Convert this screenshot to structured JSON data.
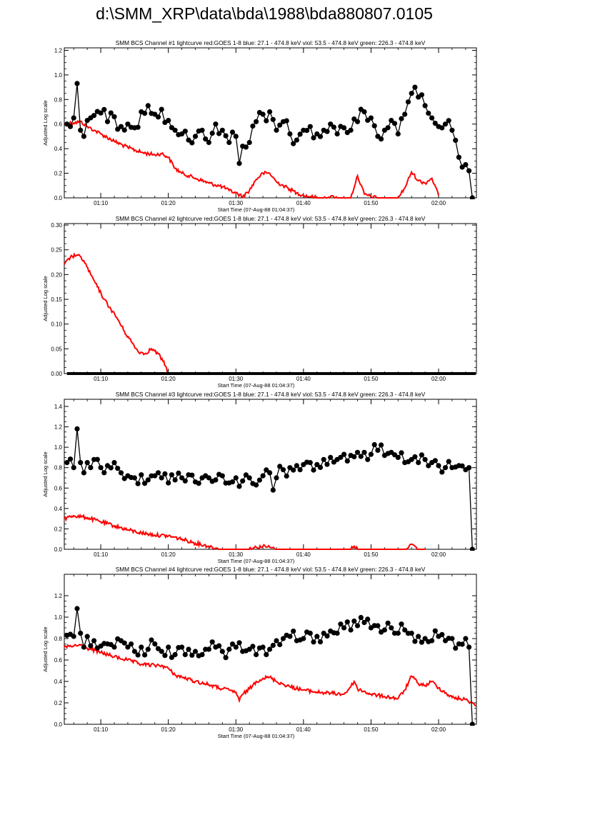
{
  "page": {
    "title": "d:\\SMM_XRP\\data\\bda\\1988\\bda880807.0105"
  },
  "colors": {
    "goes": "#ff0000",
    "bcs": "#000000",
    "axes": "#000000"
  },
  "chart_data": [
    {
      "type": "line",
      "title": "SMM BCS Channel #1 lightcurve  red:GOES 1-8  blue: 27.1 - 474.8 keV  viol: 53.5 - 474.8 keV  green: 226.3 - 474.8 keV",
      "xlabel": "Start Time (07-Aug-88 01:04:37)",
      "ylabel": "Adjusted Log scale",
      "x_unit": "minutes after 01:00",
      "xlim": [
        4.6,
        65.6
      ],
      "ylim": [
        0,
        1.22
      ],
      "yticks": [
        "0.0",
        "0.2",
        "0.4",
        "0.6",
        "0.8",
        "1.0",
        "1.2"
      ],
      "ytick_values": [
        0,
        0.2,
        0.4,
        0.6,
        0.8,
        1.0,
        1.2
      ],
      "xtick_labels": [
        "01:10",
        "01:20",
        "01:30",
        "01:40",
        "01:50",
        "02:00"
      ],
      "xtick_values": [
        10,
        20,
        30,
        40,
        50,
        60
      ],
      "series": [
        {
          "style": "goes",
          "color": "#ff0000",
          "x": [
            4.6,
            6,
            7,
            8,
            9,
            10,
            12,
            14,
            16,
            18,
            19,
            20,
            21,
            22,
            24,
            26,
            28,
            29,
            30,
            31,
            32,
            33,
            34,
            35,
            36,
            37,
            38,
            39,
            40,
            41,
            42,
            43,
            44,
            45,
            46,
            47,
            48,
            49,
            50,
            51,
            52,
            53,
            54,
            55,
            56,
            57,
            58,
            59,
            60
          ],
          "y": [
            0.6,
            0.61,
            0.62,
            0.58,
            0.55,
            0.52,
            0.46,
            0.41,
            0.37,
            0.35,
            0.36,
            0.33,
            0.24,
            0.2,
            0.16,
            0.12,
            0.09,
            0.06,
            0.04,
            0.01,
            0.06,
            0.15,
            0.2,
            0.2,
            0.13,
            0.1,
            0.07,
            0.04,
            0.02,
            0.01,
            0.0,
            0.0,
            0.01,
            0.0,
            0.0,
            0.0,
            0.18,
            0.03,
            0.01,
            0.0,
            0.0,
            0.0,
            0.0,
            0.08,
            0.21,
            0.14,
            0.12,
            0.16,
            0.02
          ]
        },
        {
          "style": "bcs",
          "color": "#000000",
          "x": [
            5,
            6,
            6.5,
            7,
            7.5,
            8,
            9,
            10,
            11,
            12,
            13,
            14,
            15,
            16,
            17,
            18,
            19,
            20,
            21,
            22,
            23,
            24,
            25,
            26,
            27,
            28,
            29,
            30,
            30.5,
            31,
            32,
            33,
            34,
            35,
            36,
            37,
            38,
            39,
            40,
            41,
            42,
            43,
            44,
            45,
            46,
            47,
            48,
            49,
            50,
            51,
            52,
            53,
            54,
            55,
            55.5,
            56,
            56.5,
            57,
            58,
            59,
            60,
            61,
            62,
            63,
            63.5,
            64,
            64.5,
            65
          ],
          "y": [
            0.6,
            0.65,
            0.93,
            0.55,
            0.5,
            0.63,
            0.67,
            0.69,
            0.62,
            0.66,
            0.58,
            0.6,
            0.57,
            0.7,
            0.75,
            0.68,
            0.72,
            0.63,
            0.55,
            0.52,
            0.47,
            0.5,
            0.55,
            0.45,
            0.6,
            0.55,
            0.45,
            0.5,
            0.28,
            0.42,
            0.45,
            0.62,
            0.68,
            0.7,
            0.55,
            0.62,
            0.52,
            0.47,
            0.55,
            0.58,
            0.52,
            0.55,
            0.6,
            0.52,
            0.57,
            0.55,
            0.62,
            0.7,
            0.65,
            0.5,
            0.55,
            0.63,
            0.52,
            0.68,
            0.78,
            0.85,
            0.9,
            0.82,
            0.75,
            0.65,
            0.58,
            0.6,
            0.55,
            0.33,
            0.25,
            0.27,
            0.22,
            0.0
          ]
        }
      ]
    },
    {
      "type": "line",
      "title": "SMM BCS Channel #2 lightcurve  red:GOES 1-8  blue: 27.1 - 474.8 keV  viol: 53.5 - 474.8 keV  green: 226.3 - 474.8 keV",
      "xlabel": "Start Time (07-Aug-88 01:04:37)",
      "ylabel": "Adjusted Log scale",
      "x_unit": "minutes after 01:00",
      "xlim": [
        4.6,
        65.6
      ],
      "ylim": [
        0,
        0.303
      ],
      "yticks": [
        "0.00",
        "0.05",
        "0.10",
        "0.15",
        "0.20",
        "0.25",
        "0.30"
      ],
      "ytick_values": [
        0,
        0.05,
        0.1,
        0.15,
        0.2,
        0.25,
        0.3
      ],
      "xtick_labels": [
        "01:10",
        "01:20",
        "01:30",
        "01:40",
        "01:50",
        "02:00"
      ],
      "xtick_values": [
        10,
        20,
        30,
        40,
        50,
        60
      ],
      "series": [
        {
          "style": "goes",
          "color": "#ff0000",
          "x": [
            4.6,
            5.5,
            6.5,
            7.5,
            8.5,
            9.5,
            10.5,
            11.5,
            12.5,
            13.5,
            14.5,
            15.5,
            16.5,
            17.5,
            18.5,
            19.2,
            19.6,
            20
          ],
          "y": [
            0.22,
            0.235,
            0.24,
            0.228,
            0.2,
            0.175,
            0.15,
            0.13,
            0.11,
            0.085,
            0.065,
            0.045,
            0.04,
            0.05,
            0.04,
            0.025,
            0.015,
            0.0
          ]
        },
        {
          "style": "bcs-baseline",
          "color": "#000000",
          "x": [
            5,
            65.5
          ],
          "y": [
            0,
            0
          ]
        }
      ]
    },
    {
      "type": "line",
      "title": "SMM BCS Channel #3 lightcurve  red:GOES 1-8  blue: 27.1 - 474.8 keV  viol: 53.5 - 474.8 keV  green: 226.3 - 474.8 keV",
      "xlabel": "Start Time (07-Aug-88 01:04:37)",
      "ylabel": "Adjusted Log scale",
      "x_unit": "minutes after 01:00",
      "xlim": [
        4.6,
        65.6
      ],
      "ylim": [
        0,
        1.47
      ],
      "yticks": [
        "0.0",
        "0.2",
        "0.4",
        "0.6",
        "0.8",
        "1.0",
        "1.2",
        "1.4"
      ],
      "ytick_values": [
        0,
        0.2,
        0.4,
        0.6,
        0.8,
        1.0,
        1.2,
        1.4
      ],
      "xtick_labels": [
        "01:10",
        "01:20",
        "01:30",
        "01:40",
        "01:50",
        "02:00"
      ],
      "xtick_values": [
        10,
        20,
        30,
        40,
        50,
        60
      ],
      "series": [
        {
          "style": "goes",
          "color": "#ff0000",
          "x": [
            4.6,
            6,
            8,
            10,
            12,
            14,
            16,
            18,
            20,
            22,
            24,
            26,
            27,
            28,
            32,
            33,
            34,
            35,
            36,
            45,
            47,
            47.5,
            48,
            55,
            56,
            56.5,
            57,
            58
          ],
          "y": [
            0.3,
            0.33,
            0.31,
            0.27,
            0.23,
            0.19,
            0.16,
            0.14,
            0.13,
            0.1,
            0.06,
            0.03,
            0.01,
            0.0,
            0.0,
            0.02,
            0.03,
            0.02,
            0.0,
            0.0,
            0.0,
            0.03,
            0.0,
            0.0,
            0.05,
            0.03,
            0.0,
            0.0
          ]
        },
        {
          "style": "bcs",
          "color": "#000000",
          "x": [
            5,
            6,
            6.5,
            7,
            7.5,
            8,
            9,
            10,
            11,
            12,
            13,
            14,
            15,
            16,
            17,
            18,
            19,
            20,
            21,
            22,
            23,
            24,
            25,
            26,
            27,
            28,
            29,
            30,
            31,
            32,
            33,
            34,
            35,
            35.5,
            36,
            37,
            38,
            39,
            40,
            41,
            42,
            43,
            44,
            45,
            46,
            47,
            48,
            49,
            50,
            51,
            52,
            53,
            54,
            55,
            56,
            57,
            58,
            59,
            60,
            61,
            62,
            63,
            64,
            64.5,
            65
          ],
          "y": [
            0.85,
            0.8,
            1.18,
            0.85,
            0.75,
            0.85,
            0.88,
            0.8,
            0.82,
            0.85,
            0.75,
            0.72,
            0.7,
            0.73,
            0.68,
            0.72,
            0.7,
            0.65,
            0.68,
            0.7,
            0.73,
            0.66,
            0.7,
            0.7,
            0.68,
            0.72,
            0.65,
            0.7,
            0.67,
            0.7,
            0.63,
            0.72,
            0.75,
            0.58,
            0.7,
            0.78,
            0.8,
            0.82,
            0.83,
            0.85,
            0.83,
            0.88,
            0.9,
            0.88,
            0.93,
            0.92,
            0.95,
            0.95,
            0.93,
            0.97,
            0.92,
            0.95,
            0.9,
            0.85,
            0.88,
            0.85,
            0.88,
            0.85,
            0.82,
            0.8,
            0.8,
            0.82,
            0.78,
            0.8,
            0.0
          ]
        }
      ]
    },
    {
      "type": "line",
      "title": "SMM BCS Channel #4 lightcurve  red:GOES 1-8  blue: 27.1 - 474.8 keV  viol: 53.5 - 474.8 keV  green: 226.3 - 474.8 keV",
      "xlabel": "Start Time (07-Aug-88 01:04:37)",
      "ylabel": "Adjusted Log scale",
      "x_unit": "minutes after 01:00",
      "xlim": [
        4.6,
        65.6
      ],
      "ylim": [
        0,
        1.4
      ],
      "yticks": [
        "0.0",
        "0.2",
        "0.4",
        "0.6",
        "0.8",
        "1.0",
        "1.2"
      ],
      "ytick_values": [
        0,
        0.2,
        0.4,
        0.6,
        0.8,
        1.0,
        1.2
      ],
      "xtick_labels": [
        "01:10",
        "01:20",
        "01:30",
        "01:40",
        "01:50",
        "02:00"
      ],
      "xtick_values": [
        10,
        20,
        30,
        40,
        50,
        60
      ],
      "series": [
        {
          "style": "goes",
          "color": "#ff0000",
          "x": [
            4.6,
            6,
            7,
            8,
            10,
            12,
            14,
            16,
            18,
            19,
            20,
            21,
            22,
            24,
            26,
            28,
            29,
            30,
            30.5,
            31,
            32,
            33,
            34,
            35,
            36,
            38,
            40,
            42,
            44,
            46,
            47,
            47.5,
            48,
            50,
            52,
            54,
            55,
            56,
            57,
            58,
            59,
            60,
            62,
            64,
            65,
            65.5
          ],
          "y": [
            0.72,
            0.73,
            0.74,
            0.71,
            0.67,
            0.63,
            0.6,
            0.56,
            0.55,
            0.55,
            0.52,
            0.46,
            0.44,
            0.4,
            0.37,
            0.33,
            0.32,
            0.3,
            0.22,
            0.28,
            0.33,
            0.4,
            0.43,
            0.44,
            0.4,
            0.35,
            0.32,
            0.3,
            0.29,
            0.28,
            0.35,
            0.4,
            0.33,
            0.28,
            0.26,
            0.24,
            0.32,
            0.45,
            0.38,
            0.36,
            0.4,
            0.34,
            0.25,
            0.23,
            0.2,
            0.17
          ]
        },
        {
          "style": "bcs",
          "color": "#000000",
          "x": [
            5,
            6,
            6.5,
            7,
            7.5,
            8,
            9,
            10,
            11,
            12,
            13,
            14,
            15,
            16,
            17,
            18,
            19,
            20,
            21,
            22,
            23,
            24,
            25,
            26,
            27,
            28,
            29,
            30,
            31,
            32,
            33,
            34,
            35,
            36,
            37,
            38,
            39,
            40,
            41,
            42,
            43,
            44,
            45,
            46,
            47,
            48,
            49,
            50,
            51,
            52,
            53,
            54,
            55,
            56,
            57,
            58,
            59,
            60,
            61,
            62,
            63,
            64,
            64.5,
            65
          ],
          "y": [
            0.83,
            0.82,
            1.08,
            0.85,
            0.72,
            0.82,
            0.78,
            0.73,
            0.75,
            0.72,
            0.78,
            0.72,
            0.68,
            0.72,
            0.7,
            0.75,
            0.68,
            0.72,
            0.65,
            0.72,
            0.7,
            0.68,
            0.65,
            0.7,
            0.72,
            0.68,
            0.7,
            0.72,
            0.68,
            0.7,
            0.65,
            0.72,
            0.7,
            0.78,
            0.8,
            0.82,
            0.78,
            0.8,
            0.85,
            0.82,
            0.85,
            0.87,
            0.85,
            0.9,
            0.88,
            0.92,
            0.95,
            0.9,
            0.92,
            0.88,
            0.9,
            0.85,
            0.88,
            0.85,
            0.82,
            0.8,
            0.78,
            0.82,
            0.78,
            0.8,
            0.75,
            0.8,
            0.72,
            0.0
          ]
        }
      ]
    }
  ]
}
